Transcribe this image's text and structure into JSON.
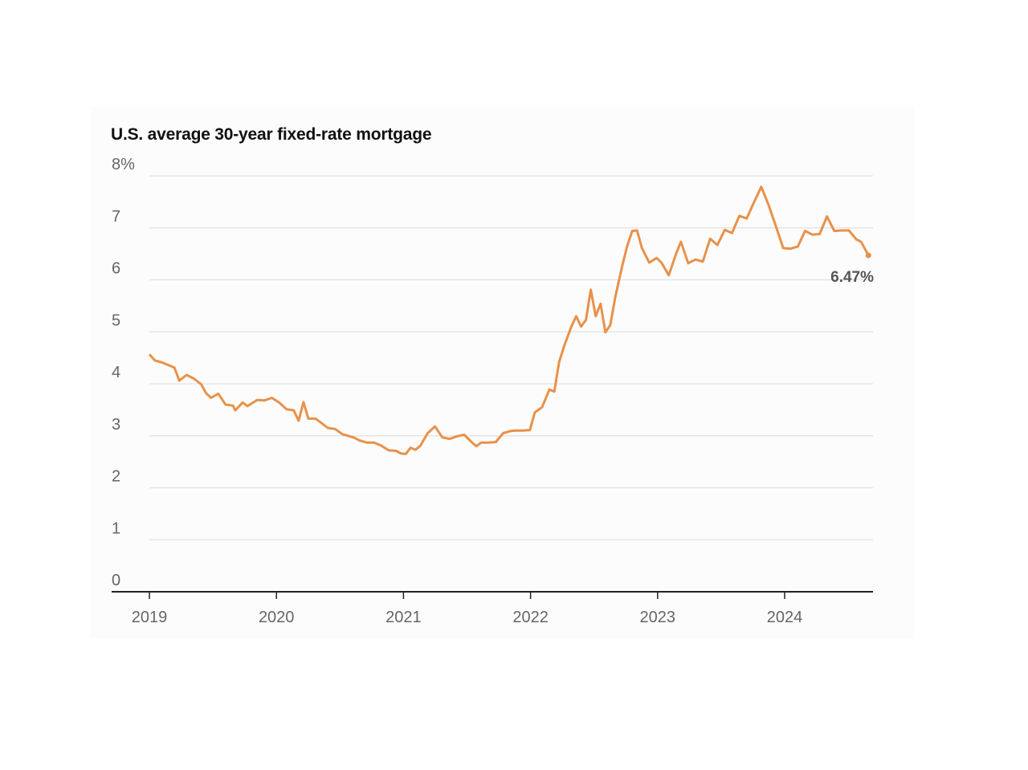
{
  "chart_data": {
    "type": "line",
    "title": "U.S. average 30-year fixed-rate mortgage",
    "xlabel": "",
    "ylabel": "",
    "x_ticks": [
      "2019",
      "2020",
      "2021",
      "2022",
      "2023",
      "2024"
    ],
    "y_ticks": [
      "0",
      "1",
      "2",
      "3",
      "4",
      "5",
      "6",
      "7",
      "8%"
    ],
    "xlim": [
      "2019-01-01",
      "2024-08-29"
    ],
    "ylim": [
      0,
      8
    ],
    "grid": true,
    "line_color": "#e8914a",
    "end_label": "6.47%",
    "series": [
      {
        "values": [
          [
            "2019-01-03",
            4.55
          ],
          [
            "2019-01-17",
            4.45
          ],
          [
            "2019-02-07",
            4.41
          ],
          [
            "2019-02-28",
            4.35
          ],
          [
            "2019-03-14",
            4.31
          ],
          [
            "2019-03-28",
            4.06
          ],
          [
            "2019-04-18",
            4.17
          ],
          [
            "2019-05-09",
            4.1
          ],
          [
            "2019-05-30",
            3.99
          ],
          [
            "2019-06-13",
            3.82
          ],
          [
            "2019-06-27",
            3.73
          ],
          [
            "2019-07-18",
            3.81
          ],
          [
            "2019-08-08",
            3.6
          ],
          [
            "2019-08-29",
            3.58
          ],
          [
            "2019-09-05",
            3.49
          ],
          [
            "2019-09-26",
            3.64
          ],
          [
            "2019-10-10",
            3.57
          ],
          [
            "2019-11-07",
            3.69
          ],
          [
            "2019-11-28",
            3.68
          ],
          [
            "2019-12-19",
            3.73
          ],
          [
            "2020-01-09",
            3.64
          ],
          [
            "2020-01-30",
            3.51
          ],
          [
            "2020-02-20",
            3.49
          ],
          [
            "2020-03-05",
            3.29
          ],
          [
            "2020-03-19",
            3.65
          ],
          [
            "2020-04-02",
            3.33
          ],
          [
            "2020-04-23",
            3.33
          ],
          [
            "2020-05-07",
            3.26
          ],
          [
            "2020-05-28",
            3.15
          ],
          [
            "2020-06-18",
            3.13
          ],
          [
            "2020-07-09",
            3.03
          ],
          [
            "2020-07-30",
            2.99
          ],
          [
            "2020-08-13",
            2.96
          ],
          [
            "2020-08-27",
            2.91
          ],
          [
            "2020-09-17",
            2.87
          ],
          [
            "2020-10-08",
            2.87
          ],
          [
            "2020-10-29",
            2.81
          ],
          [
            "2020-11-19",
            2.72
          ],
          [
            "2020-12-10",
            2.71
          ],
          [
            "2020-12-24",
            2.66
          ],
          [
            "2021-01-07",
            2.65
          ],
          [
            "2021-01-21",
            2.77
          ],
          [
            "2021-02-04",
            2.73
          ],
          [
            "2021-02-18",
            2.81
          ],
          [
            "2021-03-11",
            3.05
          ],
          [
            "2021-04-01",
            3.18
          ],
          [
            "2021-04-22",
            2.97
          ],
          [
            "2021-05-13",
            2.94
          ],
          [
            "2021-06-03",
            2.99
          ],
          [
            "2021-06-24",
            3.02
          ],
          [
            "2021-07-15",
            2.88
          ],
          [
            "2021-07-29",
            2.8
          ],
          [
            "2021-08-12",
            2.87
          ],
          [
            "2021-09-02",
            2.87
          ],
          [
            "2021-09-23",
            2.88
          ],
          [
            "2021-10-14",
            3.05
          ],
          [
            "2021-11-04",
            3.09
          ],
          [
            "2021-11-18",
            3.1
          ],
          [
            "2021-12-09",
            3.1
          ],
          [
            "2021-12-30",
            3.11
          ],
          [
            "2022-01-13",
            3.45
          ],
          [
            "2022-02-03",
            3.55
          ],
          [
            "2022-02-24",
            3.89
          ],
          [
            "2022-03-10",
            3.85
          ],
          [
            "2022-03-24",
            4.42
          ],
          [
            "2022-04-07",
            4.72
          ],
          [
            "2022-04-28",
            5.1
          ],
          [
            "2022-05-12",
            5.3
          ],
          [
            "2022-05-26",
            5.1
          ],
          [
            "2022-06-09",
            5.23
          ],
          [
            "2022-06-23",
            5.81
          ],
          [
            "2022-07-07",
            5.3
          ],
          [
            "2022-07-21",
            5.54
          ],
          [
            "2022-08-04",
            4.99
          ],
          [
            "2022-08-18",
            5.13
          ],
          [
            "2022-09-01",
            5.66
          ],
          [
            "2022-09-22",
            6.29
          ],
          [
            "2022-10-06",
            6.66
          ],
          [
            "2022-10-20",
            6.94
          ],
          [
            "2022-11-03",
            6.95
          ],
          [
            "2022-11-17",
            6.61
          ],
          [
            "2022-12-08",
            6.33
          ],
          [
            "2022-12-29",
            6.42
          ],
          [
            "2023-01-12",
            6.33
          ],
          [
            "2023-02-02",
            6.09
          ],
          [
            "2023-02-23",
            6.5
          ],
          [
            "2023-03-09",
            6.73
          ],
          [
            "2023-03-30",
            6.32
          ],
          [
            "2023-04-20",
            6.39
          ],
          [
            "2023-05-11",
            6.35
          ],
          [
            "2023-06-01",
            6.79
          ],
          [
            "2023-06-22",
            6.67
          ],
          [
            "2023-07-13",
            6.96
          ],
          [
            "2023-08-03",
            6.9
          ],
          [
            "2023-08-24",
            7.23
          ],
          [
            "2023-09-14",
            7.18
          ],
          [
            "2023-10-05",
            7.49
          ],
          [
            "2023-10-26",
            7.79
          ],
          [
            "2023-11-16",
            7.44
          ],
          [
            "2023-12-07",
            7.03
          ],
          [
            "2023-12-28",
            6.61
          ],
          [
            "2024-01-18",
            6.6
          ],
          [
            "2024-02-08",
            6.64
          ],
          [
            "2024-02-29",
            6.94
          ],
          [
            "2024-03-21",
            6.87
          ],
          [
            "2024-04-11",
            6.88
          ],
          [
            "2024-05-02",
            7.22
          ],
          [
            "2024-05-23",
            6.94
          ],
          [
            "2024-06-13",
            6.95
          ],
          [
            "2024-07-04",
            6.95
          ],
          [
            "2024-07-25",
            6.78
          ],
          [
            "2024-08-08",
            6.73
          ],
          [
            "2024-08-29",
            6.47
          ]
        ]
      }
    ]
  }
}
